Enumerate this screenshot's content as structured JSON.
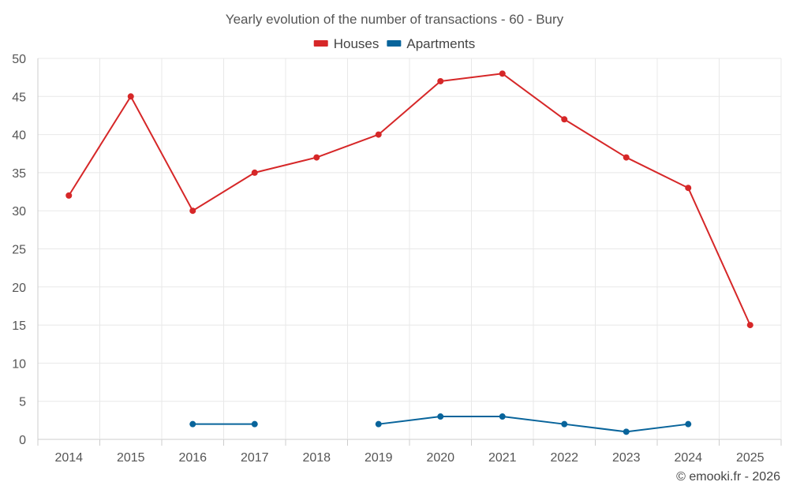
{
  "chart_data": {
    "type": "line",
    "title": "Yearly evolution of the number of transactions - 60 - Bury",
    "categories": [
      "2014",
      "2015",
      "2016",
      "2017",
      "2018",
      "2019",
      "2020",
      "2021",
      "2022",
      "2023",
      "2024",
      "2025"
    ],
    "series": [
      {
        "name": "Houses",
        "color": "#d62728",
        "values": [
          32,
          45,
          30,
          35,
          37,
          40,
          47,
          48,
          42,
          37,
          33,
          15
        ]
      },
      {
        "name": "Apartments",
        "color": "#08649b",
        "values": [
          null,
          null,
          2,
          2,
          null,
          2,
          3,
          3,
          2,
          1,
          2,
          null
        ]
      }
    ],
    "ylim": [
      0,
      50
    ],
    "yticks": [
      0,
      5,
      10,
      15,
      20,
      25,
      30,
      35,
      40,
      45,
      50
    ],
    "xlabel": "",
    "ylabel": "",
    "grid": true,
    "legend_position": "top-center"
  },
  "credit": "© emooki.fr - 2026"
}
